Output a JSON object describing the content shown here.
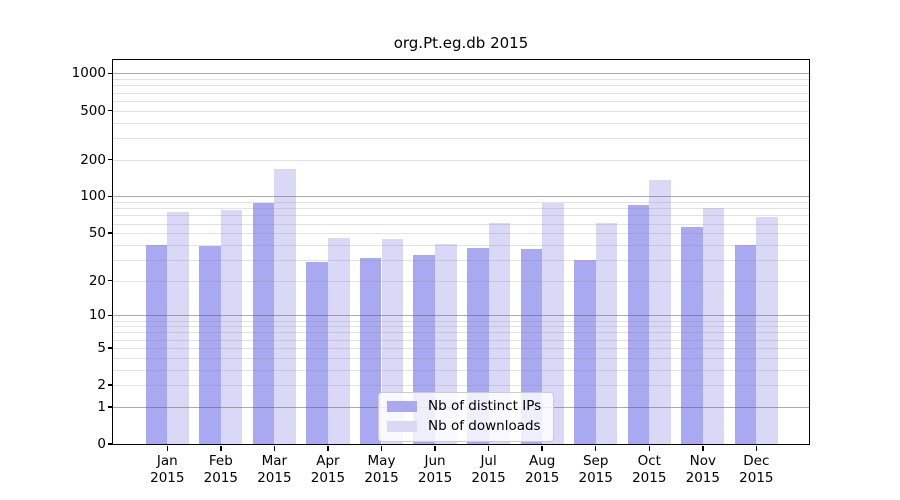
{
  "chart_data": {
    "type": "bar",
    "title": "org.Pt.eg.db 2015",
    "categories": [
      "Jan 2015",
      "Feb 2015",
      "Mar 2015",
      "Apr 2015",
      "May 2015",
      "Jun 2015",
      "Jul 2015",
      "Aug 2015",
      "Sep 2015",
      "Oct 2015",
      "Nov 2015",
      "Dec 2015"
    ],
    "series": [
      {
        "name": "Nb of distinct IPs",
        "color": "#a9a9f2",
        "values": [
          40,
          39,
          89,
          29,
          31,
          33,
          38,
          37,
          30,
          85,
          56,
          40
        ]
      },
      {
        "name": "Nb of downloads",
        "color": "#d9d9f7",
        "values": [
          74,
          77,
          168,
          46,
          45,
          41,
          61,
          88,
          61,
          136,
          80,
          68
        ]
      }
    ],
    "xlabel": "",
    "ylabel": "",
    "y_scale": "log1p",
    "y_ticks": [
      0,
      1,
      2,
      5,
      10,
      20,
      50,
      100,
      200,
      500,
      1000
    ],
    "y_major_gridlines": [
      1,
      10,
      100,
      1000
    ],
    "y_minor_gridline_base": [
      2,
      3,
      4,
      5,
      6,
      7,
      8,
      9
    ],
    "ylim": [
      0,
      1300
    ],
    "grid": "on",
    "legend_position": "inside-bottom-center"
  },
  "colors": {
    "background": "#ffffff",
    "bar_distinct_ips": "#a9a9f2",
    "bar_downloads": "#d9d9f7",
    "major_grid": "rgba(90,90,90,0.50)",
    "minor_grid": "rgba(140,140,140,0.25)",
    "axis": "#000000",
    "text": "#000000",
    "legend_border": "#cccccc",
    "legend_bg": "rgba(255,255,255,0.8)"
  }
}
